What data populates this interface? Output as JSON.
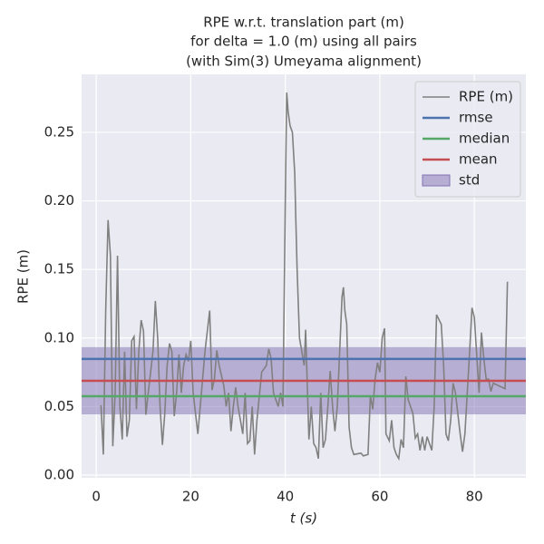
{
  "chart_data": {
    "type": "line",
    "title": [
      "RPE w.r.t. translation part (m)",
      "for delta = 1.0 (m) using all pairs",
      "(with Sim(3) Umeyama alignment)"
    ],
    "xlabel": "t (s)",
    "ylabel": "RPE (m)",
    "xlim": [
      -3.1,
      90.9
    ],
    "ylim": [
      -0.002,
      0.2923
    ],
    "xticks": [
      0,
      20,
      40,
      60,
      80
    ],
    "yticks": [
      {
        "value": 0,
        "label": "0.00"
      },
      0.05,
      {
        "value": 0.1,
        "label": "0.10"
      },
      0.15,
      {
        "value": 0.2,
        "label": "0.20"
      },
      0.25
    ],
    "grid": true,
    "legend": "upper right",
    "x": [
      1,
      1.5,
      2,
      2.5,
      3,
      3.5,
      4,
      4.5,
      5,
      5.5,
      6,
      6.5,
      7,
      7.5,
      8,
      8.5,
      9,
      9.5,
      10,
      10.5,
      11,
      12,
      12.5,
      13,
      13.5,
      14,
      14.5,
      15,
      15.5,
      16,
      16.5,
      17,
      17.5,
      18,
      18.5,
      19,
      19.5,
      20,
      20.5,
      21,
      21.5,
      22,
      23,
      24,
      24.5,
      25,
      25.5,
      26,
      27,
      27.5,
      28,
      28.5,
      29,
      29.5,
      30,
      31,
      31.5,
      32,
      32.5,
      33,
      33.5,
      34,
      35,
      36,
      36.5,
      37,
      37.5,
      38,
      38.5,
      39,
      39.5,
      40,
      40.3,
      40.6,
      41,
      41.5,
      42,
      42.2,
      42.5,
      43,
      43.5,
      44,
      44.3,
      45,
      45.5,
      46,
      46.5,
      47,
      47.5,
      48,
      48.5,
      49,
      49.5,
      50,
      50.5,
      51,
      51.5,
      52,
      52.3,
      52.6,
      53,
      53.5,
      54,
      54.5,
      56,
      56.5,
      57.5,
      58,
      58.5,
      59,
      59.5,
      60,
      60.5,
      61,
      61.3,
      62,
      62.5,
      63,
      63.5,
      64,
      64.5,
      65,
      65.5,
      66,
      67,
      67.5,
      68,
      68.5,
      69,
      69.5,
      70,
      71,
      71.5,
      72,
      73,
      73.5,
      74,
      74.5,
      75,
      75.5,
      76,
      77,
      77.5,
      78,
      78.5,
      79,
      79.5,
      80,
      81,
      81.5,
      82,
      82.5,
      83,
      83.5,
      84,
      86.5,
      87
    ],
    "series": [
      {
        "name": "RPE (m)",
        "color": "#808080",
        "values": [
          0.051,
          0.015,
          0.12,
          0.186,
          0.16,
          0.021,
          0.06,
          0.16,
          0.05,
          0.026,
          0.09,
          0.028,
          0.04,
          0.098,
          0.101,
          0.048,
          0.09,
          0.113,
          0.105,
          0.044,
          0.06,
          0.09,
          0.127,
          0.1,
          0.05,
          0.022,
          0.045,
          0.08,
          0.096,
          0.09,
          0.043,
          0.06,
          0.088,
          0.06,
          0.08,
          0.088,
          0.083,
          0.098,
          0.06,
          0.045,
          0.03,
          0.05,
          0.09,
          0.12,
          0.062,
          0.07,
          0.091,
          0.08,
          0.065,
          0.05,
          0.06,
          0.032,
          0.05,
          0.064,
          0.05,
          0.03,
          0.06,
          0.023,
          0.025,
          0.05,
          0.015,
          0.04,
          0.075,
          0.08,
          0.092,
          0.085,
          0.06,
          0.055,
          0.05,
          0.06,
          0.05,
          0.2,
          0.279,
          0.265,
          0.255,
          0.25,
          0.22,
          0.19,
          0.15,
          0.1,
          0.09,
          0.08,
          0.106,
          0.026,
          0.05,
          0.023,
          0.02,
          0.012,
          0.06,
          0.02,
          0.026,
          0.05,
          0.076,
          0.05,
          0.032,
          0.05,
          0.09,
          0.13,
          0.137,
          0.12,
          0.11,
          0.035,
          0.02,
          0.015,
          0.016,
          0.014,
          0.015,
          0.058,
          0.048,
          0.07,
          0.082,
          0.075,
          0.1,
          0.107,
          0.03,
          0.025,
          0.04,
          0.02,
          0.015,
          0.012,
          0.026,
          0.02,
          0.072,
          0.055,
          0.045,
          0.027,
          0.03,
          0.018,
          0.028,
          0.018,
          0.028,
          0.018,
          0.05,
          0.117,
          0.11,
          0.08,
          0.03,
          0.025,
          0.04,
          0.067,
          0.06,
          0.03,
          0.017,
          0.03,
          0.06,
          0.09,
          0.122,
          0.115,
          0.06,
          0.104,
          0.085,
          0.07,
          0.07,
          0.061,
          0.067,
          0.063,
          0.141
        ]
      }
    ],
    "hlines": [
      {
        "name": "rmse",
        "color": "#4c72b0",
        "value": 0.0847
      },
      {
        "name": "median",
        "color": "#55a868",
        "value": 0.0575
      },
      {
        "name": "mean",
        "color": "#c44e52",
        "value": 0.0688
      }
    ],
    "std": {
      "name": "std",
      "color": "#8172b3",
      "value": 0.0245
    }
  }
}
